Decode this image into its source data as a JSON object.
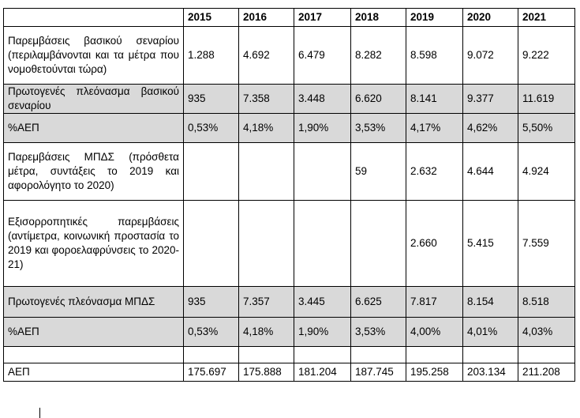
{
  "table": {
    "header": [
      "",
      "2015",
      "2016",
      "2017",
      "2018",
      "2019",
      "2020",
      "2021"
    ],
    "rows": [
      {
        "label": "Παρεμβάσεις βασικού σεναρίου (περιλαμβάνονται και τα μέτρα που νομοθετούνται τώρα)",
        "values": [
          "1.288",
          "4.692",
          "6.479",
          "8.282",
          "8.598",
          "9.072",
          "9.222"
        ],
        "shaded": false
      },
      {
        "label": "Πρωτογενές πλεόνασμα βασικού σεναρίου",
        "values": [
          "935",
          "7.358",
          "3.448",
          "6.620",
          "8.141",
          "9.377",
          "11.619"
        ],
        "shaded": true
      },
      {
        "label": "%ΑΕΠ",
        "values": [
          "0,53%",
          "4,18%",
          "1,90%",
          "3,53%",
          "4,17%",
          "4,62%",
          "5,50%"
        ],
        "shaded": true
      },
      {
        "label": "Παρεμβάσεις ΜΠΔΣ (πρόσθετα μέτρα, συντάξεις το 2019 και αφορολόγητο το 2020)",
        "values": [
          "",
          "",
          "",
          "59",
          "2.632",
          "4.644",
          "4.924"
        ],
        "shaded": false
      },
      {
        "label": "Εξισορροπητικές παρεμβάσεις (αντίμετρα, κοινωνική προστασία το 2019 και φοροελαφρύνσεις το 2020-21)",
        "values": [
          "",
          "",
          "",
          "",
          "2.660",
          "5.415",
          "7.559"
        ],
        "shaded": false
      },
      {
        "label": "Πρωτογενές πλεόνασμα ΜΠΔΣ",
        "values": [
          "935",
          "7.357",
          "3.445",
          "6.625",
          "7.817",
          "8.154",
          "8.518"
        ],
        "shaded": true
      },
      {
        "label": "%ΑΕΠ",
        "values": [
          "0,53%",
          "4,18%",
          "1,90%",
          "3,53%",
          "4,00%",
          "4,01%",
          "4,03%"
        ],
        "shaded": true
      },
      {
        "label": "",
        "values": [
          "",
          "",
          "",
          "",
          "",
          "",
          ""
        ],
        "shaded": false
      },
      {
        "label": "ΑΕΠ",
        "values": [
          "175.697",
          "175.888",
          "181.204",
          "187.745",
          "195.258",
          "203.134",
          "211.208"
        ],
        "shaded": false
      }
    ]
  }
}
